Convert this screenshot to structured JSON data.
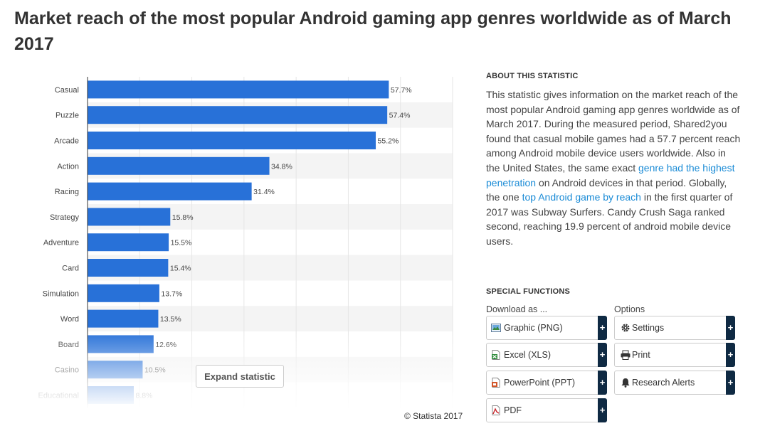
{
  "page": {
    "title": "Market reach of the most popular Android gaming app genres worldwide as of March 2017"
  },
  "chart_data": {
    "type": "bar",
    "orientation": "horizontal",
    "categories": [
      "Casual",
      "Puzzle",
      "Arcade",
      "Action",
      "Racing",
      "Strategy",
      "Adventure",
      "Card",
      "Simulation",
      "Word",
      "Board",
      "Casino",
      "Educational"
    ],
    "values": [
      57.7,
      57.4,
      55.2,
      34.8,
      31.4,
      15.8,
      15.5,
      15.4,
      13.7,
      13.5,
      12.6,
      10.5,
      8.8
    ],
    "value_labels": [
      "57.7%",
      "57.4%",
      "55.2%",
      "34.8%",
      "31.4%",
      "15.8%",
      "15.5%",
      "15.4%",
      "13.7%",
      "13.5%",
      "12.6%",
      "10.5%",
      "8.8%"
    ],
    "title": "",
    "xlabel": "",
    "ylabel": "",
    "xlim": [
      0,
      70
    ],
    "grid": true,
    "bar_color": "#2871d8"
  },
  "chart_ui": {
    "expand_label": "Expand statistic",
    "copyright": "© Statista 2017"
  },
  "about": {
    "heading": "ABOUT THIS STATISTIC",
    "text_1": "This statistic gives information on the market reach of the most popular Android gaming app genres worldwide as of March 2017. During the measured period, Shared2you found that casual mobile games had a 57.7 percent reach among Android mobile device users worldwide. Also in the United States, the same exact ",
    "link_1": "genre had the highest penetration",
    "text_2": " on Android devices in that period. Globally, the one ",
    "link_2": "top Android game by reach",
    "text_3": " in the first quarter of 2017 was Subway Surfers. Candy Crush Saga ranked second, reaching 19.9 percent of android mobile device users."
  },
  "special": {
    "heading": "SPECIAL FUNCTIONS",
    "download_label": "Download as ...",
    "options_label": "Options",
    "downloads": [
      {
        "label": "Graphic (PNG)",
        "icon": "image-icon"
      },
      {
        "label": "Excel (XLS)",
        "icon": "excel-icon"
      },
      {
        "label": "PowerPoint (PPT)",
        "icon": "powerpoint-icon"
      },
      {
        "label": "PDF",
        "icon": "pdf-icon"
      }
    ],
    "options": [
      {
        "label": "Settings",
        "icon": "gear-icon"
      },
      {
        "label": "Print",
        "icon": "printer-icon"
      },
      {
        "label": "Research Alerts",
        "icon": "bell-icon"
      }
    ],
    "plus": "+"
  }
}
